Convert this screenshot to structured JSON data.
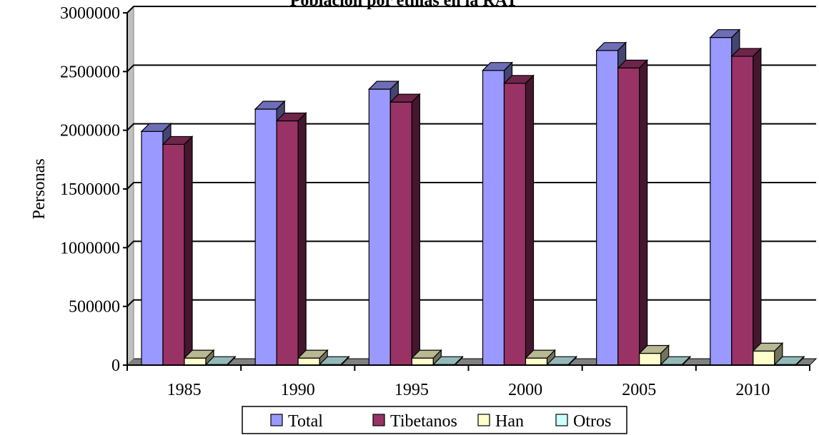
{
  "chart_data": {
    "type": "bar",
    "title": "Población por etnias en la RAT",
    "ylabel": "Personas",
    "xlabel": "",
    "categories": [
      "1985",
      "1990",
      "1995",
      "2000",
      "2005",
      "2010"
    ],
    "ylim": [
      0,
      3000000
    ],
    "yticks": [
      0,
      500000,
      1000000,
      1500000,
      2000000,
      2500000,
      3000000
    ],
    "grid": true,
    "legend_position": "bottom",
    "series": [
      {
        "name": "Total",
        "color": "#9999ff",
        "values": [
          1990000,
          2180000,
          2350000,
          2510000,
          2680000,
          2790000
        ]
      },
      {
        "name": "Tibetanos",
        "color": "#993366",
        "values": [
          1880000,
          2080000,
          2240000,
          2400000,
          2530000,
          2630000
        ]
      },
      {
        "name": "Han",
        "color": "#ffffcc",
        "values": [
          60000,
          60000,
          60000,
          60000,
          100000,
          120000
        ]
      },
      {
        "name": "Otros",
        "color": "#ccffff",
        "values": [
          5000,
          5000,
          5000,
          5000,
          5000,
          5000
        ]
      }
    ]
  }
}
